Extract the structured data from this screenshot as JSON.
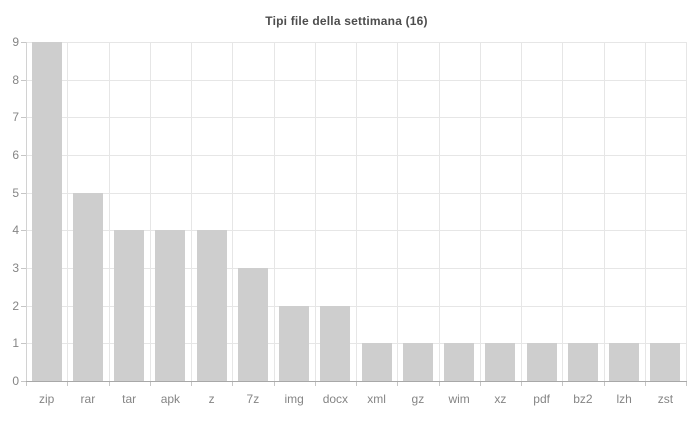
{
  "chart_data": {
    "type": "bar",
    "title": "Tipi file della settimana (16)",
    "categories": [
      "zip",
      "rar",
      "tar",
      "apk",
      "z",
      "7z",
      "img",
      "docx",
      "xml",
      "gz",
      "wim",
      "xz",
      "pdf",
      "bz2",
      "lzh",
      "zst"
    ],
    "values": [
      9,
      5,
      4,
      4,
      4,
      3,
      2,
      2,
      1,
      1,
      1,
      1,
      1,
      1,
      1,
      1
    ],
    "xlabel": "",
    "ylabel": "",
    "ylim": [
      0,
      9
    ],
    "yticks": [
      0,
      1,
      2,
      3,
      4,
      5,
      6,
      7,
      8,
      9
    ],
    "grid": true,
    "legend": false,
    "colors": {
      "bar": "#cecece",
      "grid": "#e6e6e6",
      "x_axis": "#a8a8a8",
      "y_axis": "#d2d2d2",
      "tick": "#c6c6c6",
      "label_text": "#858585",
      "title_text": "#4d4d4d",
      "background": "#ffffff"
    }
  }
}
